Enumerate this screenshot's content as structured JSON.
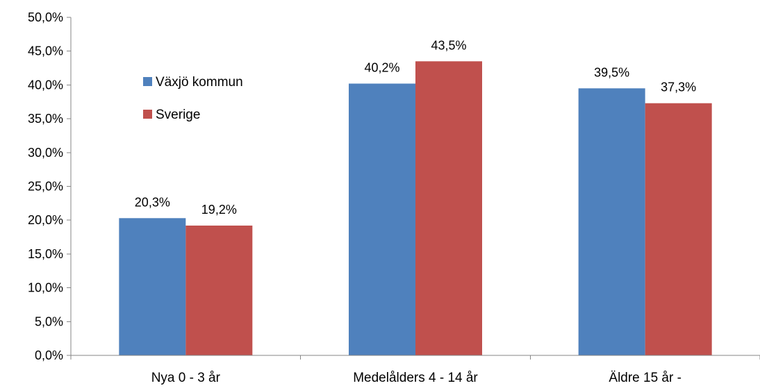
{
  "chart_data": {
    "type": "bar",
    "title": "",
    "xlabel": "",
    "ylabel": "",
    "categories": [
      "Nya 0 - 3 år",
      "Medelålders 4 - 14 år",
      "Äldre 15 år -"
    ],
    "series": [
      {
        "name": "Växjö kommun",
        "values": [
          20.3,
          40.2,
          39.5
        ],
        "labels": [
          "20,3%",
          "40,2%",
          "39,5%"
        ],
        "color": "#4F81BD"
      },
      {
        "name": "Sverige",
        "values": [
          19.2,
          43.5,
          37.3
        ],
        "labels": [
          "19,2%",
          "43,5%",
          "37,3%"
        ],
        "color": "#C0504D"
      }
    ],
    "ylim": [
      0,
      50
    ],
    "yticks": [
      0,
      5,
      10,
      15,
      20,
      25,
      30,
      35,
      40,
      45,
      50
    ],
    "ytick_labels": [
      "0,0%",
      "5,0%",
      "10,0%",
      "15,0%",
      "20,0%",
      "25,0%",
      "30,0%",
      "35,0%",
      "40,0%",
      "45,0%",
      "50,0%"
    ],
    "grid": false,
    "legend_position": "upper-left"
  }
}
